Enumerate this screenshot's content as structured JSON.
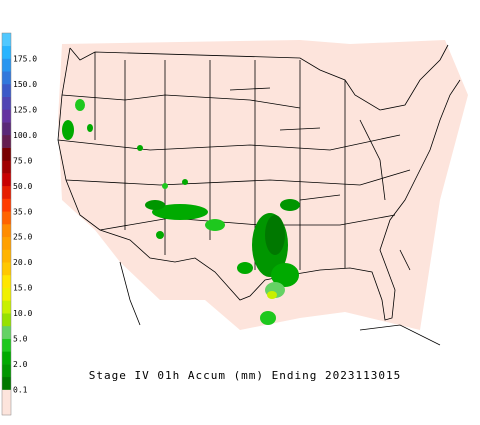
{
  "title": "Stage IV 01h Accum (mm) Ending 2023113015",
  "legend": {
    "labels": [
      "0.1",
      "2.0",
      "5.0",
      "10.0",
      "15.0",
      "20.0",
      "25.0",
      "35.0",
      "50.0",
      "75.0",
      "100.0",
      "125.0",
      "150.0",
      "175.0"
    ],
    "colors": [
      "#fde4dc",
      "#fde4dc",
      "#007800",
      "#009600",
      "#00aa00",
      "#1ec81e",
      "#64d264",
      "#96e100",
      "#c8f000",
      "#f0f000",
      "#ffe600",
      "#ffc800",
      "#ffb400",
      "#ffa000",
      "#ff8c00",
      "#ff6400",
      "#ff3c00",
      "#e61e00",
      "#c80000",
      "#a00000",
      "#780000",
      "#641e50",
      "#5a2878",
      "#6432a0",
      "#5046b4",
      "#3c5ac8",
      "#3278dc",
      "#2896f0",
      "#28b4ff",
      "#50c8ff"
    ]
  }
}
